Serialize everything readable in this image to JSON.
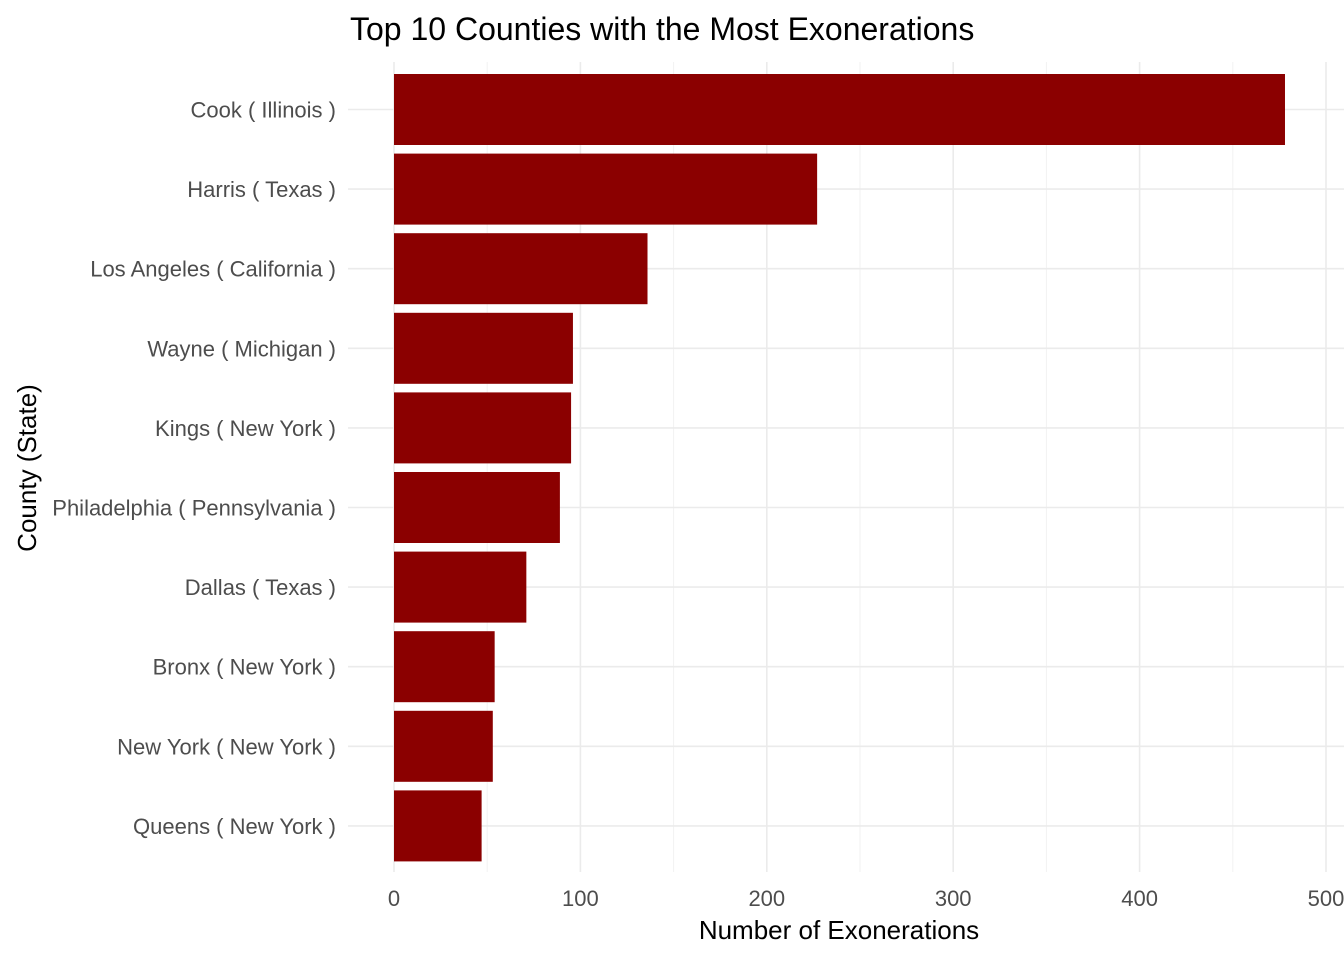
{
  "chart_data": {
    "type": "bar",
    "orientation": "horizontal",
    "title": "Top 10 Counties with the Most Exonerations",
    "xlabel": "Number of Exonerations",
    "ylabel": "County (State)",
    "categories": [
      "Cook ( Illinois )",
      "Harris ( Texas )",
      "Los Angeles ( California )",
      "Wayne ( Michigan )",
      "Kings ( New York )",
      "Philadelphia ( Pennsylvania )",
      "Dallas ( Texas )",
      "Bronx ( New York )",
      "New York ( New York )",
      "Queens ( New York )"
    ],
    "values": [
      478,
      227,
      136,
      96,
      95,
      89,
      71,
      54,
      53,
      47
    ],
    "xlim": [
      0,
      500
    ],
    "x_ticks": [
      "0",
      "100",
      "200",
      "300",
      "400",
      "500"
    ],
    "grid": true,
    "legend": "none",
    "bar_color": "#8B0000"
  }
}
